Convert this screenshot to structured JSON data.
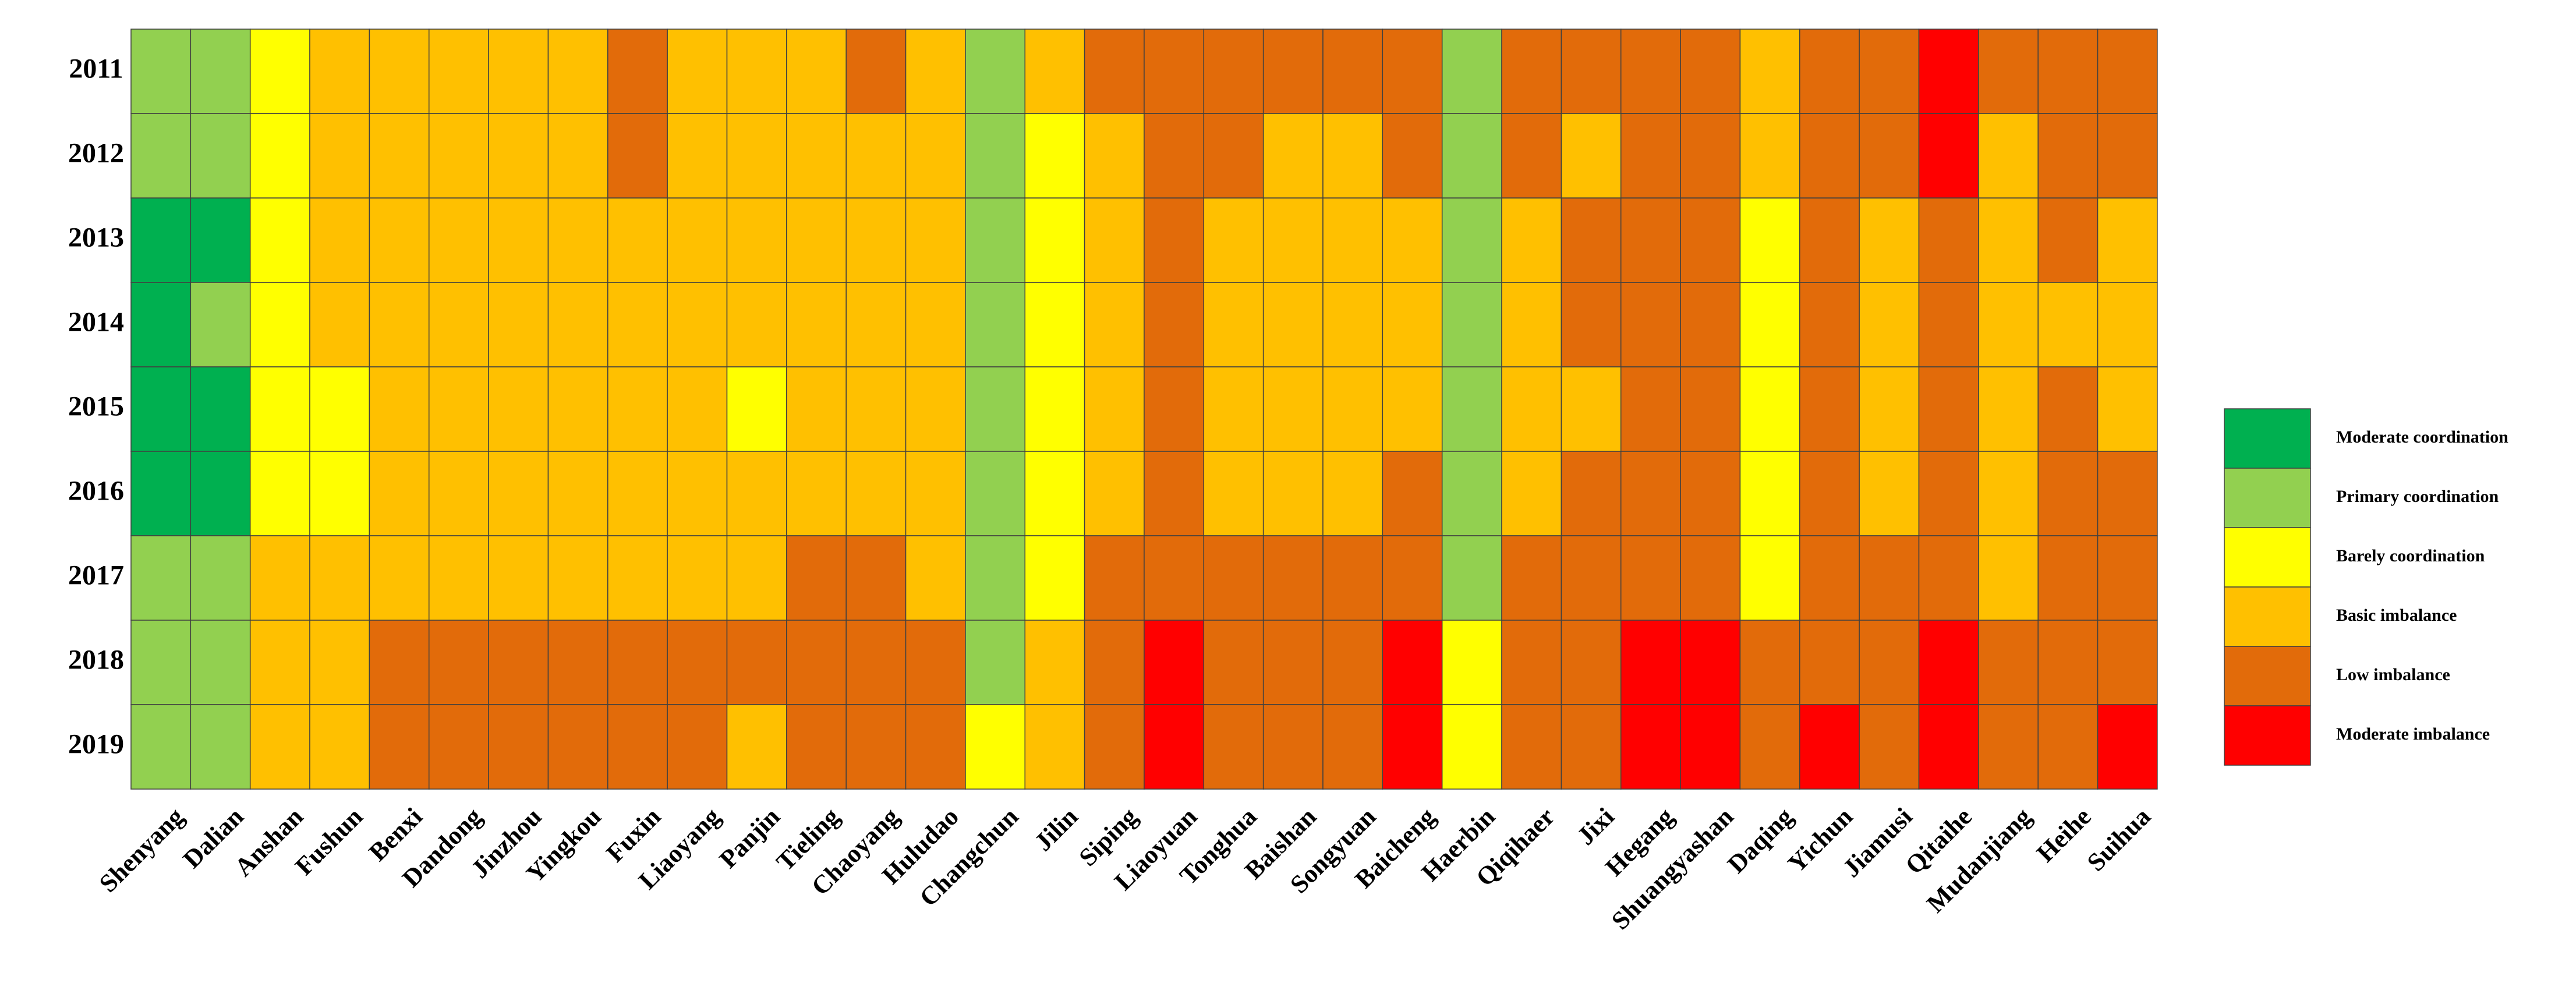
{
  "chart_data": {
    "type": "heatmap",
    "title": "",
    "xlabel": "",
    "ylabel": "",
    "grid": true,
    "legend_position": "right",
    "categories_x": [
      "Shenyang",
      "Dalian",
      "Anshan",
      "Fushun",
      "Benxi",
      "Dandong",
      "Jinzhou",
      "Yingkou",
      "Fuxin",
      "Liaoyang",
      "Panjin",
      "Tieling",
      "Chaoyang",
      "Huludao",
      "Changchun",
      "Jilin",
      "Siping",
      "Liaoyuan",
      "Tonghua",
      "Baishan",
      "Songyuan",
      "Baicheng",
      "Haerbin",
      "Qiqihaer",
      "Jixi",
      "Hegang",
      "Shuangyashan",
      "Daqing",
      "Yichun",
      "Jiamusi",
      "Qitaihe",
      "Mudanjiang",
      "Heihe",
      "Suihua"
    ],
    "categories_y": [
      "2011",
      "2012",
      "2013",
      "2014",
      "2015",
      "2016",
      "2017",
      "2018",
      "2019"
    ],
    "legend": [
      {
        "code": "MC",
        "label": "Moderate coordination",
        "color": "#00B050"
      },
      {
        "code": "PC",
        "label": "Primary coordination",
        "color": "#92D050"
      },
      {
        "code": "BC",
        "label": "Barely coordination",
        "color": "#FFFF00"
      },
      {
        "code": "BI",
        "label": "Basic imbalance",
        "color": "#FFC000"
      },
      {
        "code": "LI",
        "label": "Low imbalance",
        "color": "#E26B0A"
      },
      {
        "code": "MI",
        "label": "Moderate imbalance",
        "color": "#FF0000"
      }
    ],
    "values": [
      [
        "PC",
        "PC",
        "BC",
        "BI",
        "BI",
        "BI",
        "BI",
        "BI",
        "LI",
        "BI",
        "BI",
        "BI",
        "LI",
        "BI",
        "PC",
        "BI",
        "LI",
        "LI",
        "LI",
        "LI",
        "LI",
        "LI",
        "PC",
        "LI",
        "LI",
        "LI",
        "LI",
        "BI",
        "LI",
        "LI",
        "MI",
        "LI",
        "LI",
        "LI"
      ],
      [
        "PC",
        "PC",
        "BC",
        "BI",
        "BI",
        "BI",
        "BI",
        "BI",
        "LI",
        "BI",
        "BI",
        "BI",
        "BI",
        "BI",
        "PC",
        "BC",
        "BI",
        "LI",
        "LI",
        "BI",
        "BI",
        "LI",
        "PC",
        "LI",
        "BI",
        "LI",
        "LI",
        "BI",
        "LI",
        "LI",
        "MI",
        "BI",
        "LI",
        "LI"
      ],
      [
        "MC",
        "MC",
        "BC",
        "BI",
        "BI",
        "BI",
        "BI",
        "BI",
        "BI",
        "BI",
        "BI",
        "BI",
        "BI",
        "BI",
        "PC",
        "BC",
        "BI",
        "LI",
        "BI",
        "BI",
        "BI",
        "BI",
        "PC",
        "BI",
        "LI",
        "LI",
        "LI",
        "BC",
        "LI",
        "BI",
        "LI",
        "BI",
        "LI",
        "BI"
      ],
      [
        "MC",
        "PC",
        "BC",
        "BI",
        "BI",
        "BI",
        "BI",
        "BI",
        "BI",
        "BI",
        "BI",
        "BI",
        "BI",
        "BI",
        "PC",
        "BC",
        "BI",
        "LI",
        "BI",
        "BI",
        "BI",
        "BI",
        "PC",
        "BI",
        "LI",
        "LI",
        "LI",
        "BC",
        "LI",
        "BI",
        "LI",
        "BI",
        "BI",
        "BI"
      ],
      [
        "MC",
        "MC",
        "BC",
        "BC",
        "BI",
        "BI",
        "BI",
        "BI",
        "BI",
        "BI",
        "BC",
        "BI",
        "BI",
        "BI",
        "PC",
        "BC",
        "BI",
        "LI",
        "BI",
        "BI",
        "BI",
        "BI",
        "PC",
        "BI",
        "BI",
        "LI",
        "LI",
        "BC",
        "LI",
        "BI",
        "LI",
        "BI",
        "LI",
        "BI"
      ],
      [
        "MC",
        "MC",
        "BC",
        "BC",
        "BI",
        "BI",
        "BI",
        "BI",
        "BI",
        "BI",
        "BI",
        "BI",
        "BI",
        "BI",
        "PC",
        "BC",
        "BI",
        "LI",
        "BI",
        "BI",
        "BI",
        "LI",
        "PC",
        "BI",
        "LI",
        "LI",
        "LI",
        "BC",
        "LI",
        "BI",
        "LI",
        "BI",
        "LI",
        "LI"
      ],
      [
        "PC",
        "PC",
        "BI",
        "BI",
        "BI",
        "BI",
        "BI",
        "BI",
        "BI",
        "BI",
        "BI",
        "LI",
        "LI",
        "BI",
        "PC",
        "BC",
        "LI",
        "LI",
        "LI",
        "LI",
        "LI",
        "LI",
        "PC",
        "LI",
        "LI",
        "LI",
        "LI",
        "BC",
        "LI",
        "LI",
        "LI",
        "BI",
        "LI",
        "LI"
      ],
      [
        "PC",
        "PC",
        "BI",
        "BI",
        "LI",
        "LI",
        "LI",
        "LI",
        "LI",
        "LI",
        "LI",
        "LI",
        "LI",
        "LI",
        "PC",
        "BI",
        "LI",
        "MI",
        "LI",
        "LI",
        "LI",
        "MI",
        "BC",
        "LI",
        "LI",
        "MI",
        "MI",
        "LI",
        "LI",
        "LI",
        "MI",
        "LI",
        "LI",
        "LI"
      ],
      [
        "PC",
        "PC",
        "BI",
        "BI",
        "LI",
        "LI",
        "LI",
        "LI",
        "LI",
        "LI",
        "BI",
        "LI",
        "LI",
        "LI",
        "BC",
        "BI",
        "LI",
        "MI",
        "LI",
        "LI",
        "LI",
        "MI",
        "BC",
        "LI",
        "LI",
        "MI",
        "MI",
        "LI",
        "MI",
        "LI",
        "MI",
        "LI",
        "LI",
        "MI"
      ]
    ]
  }
}
